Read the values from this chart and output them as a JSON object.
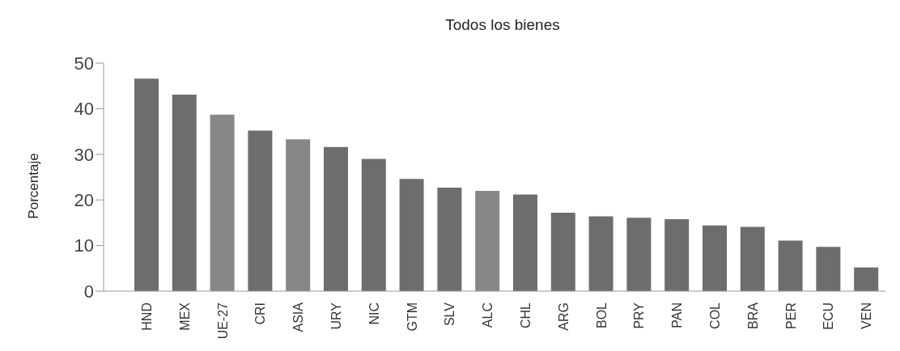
{
  "chart_data": {
    "type": "bar",
    "title": "Todos los bienes",
    "ylabel": "Porcentaje",
    "categories": [
      "HND",
      "MEX",
      "UE-27",
      "CRI",
      "ASIA",
      "URY",
      "NIC",
      "GTM",
      "SLV",
      "ALC",
      "CHL",
      "ARG",
      "BOL",
      "PRY",
      "PAN",
      "COL",
      "BRA",
      "PER",
      "ECU",
      "VEN"
    ],
    "values": [
      46.6,
      43.1,
      38.7,
      35.2,
      33.3,
      31.6,
      29.0,
      24.6,
      22.7,
      22.0,
      21.2,
      17.2,
      16.4,
      16.1,
      15.8,
      14.4,
      14.1,
      11.1,
      9.7,
      5.2
    ],
    "colors": [
      "#6d6d6d",
      "#6d6d6d",
      "#878787",
      "#6d6d6d",
      "#878787",
      "#6d6d6d",
      "#6d6d6d",
      "#6d6d6d",
      "#6d6d6d",
      "#878787",
      "#6d6d6d",
      "#6d6d6d",
      "#6d6d6d",
      "#6d6d6d",
      "#6d6d6d",
      "#6d6d6d",
      "#6d6d6d",
      "#6d6d6d",
      "#6d6d6d",
      "#6d6d6d"
    ],
    "ylim": [
      0,
      50
    ],
    "yticks": [
      0,
      10,
      20,
      30,
      40,
      50
    ],
    "grid": false,
    "legend": false
  }
}
